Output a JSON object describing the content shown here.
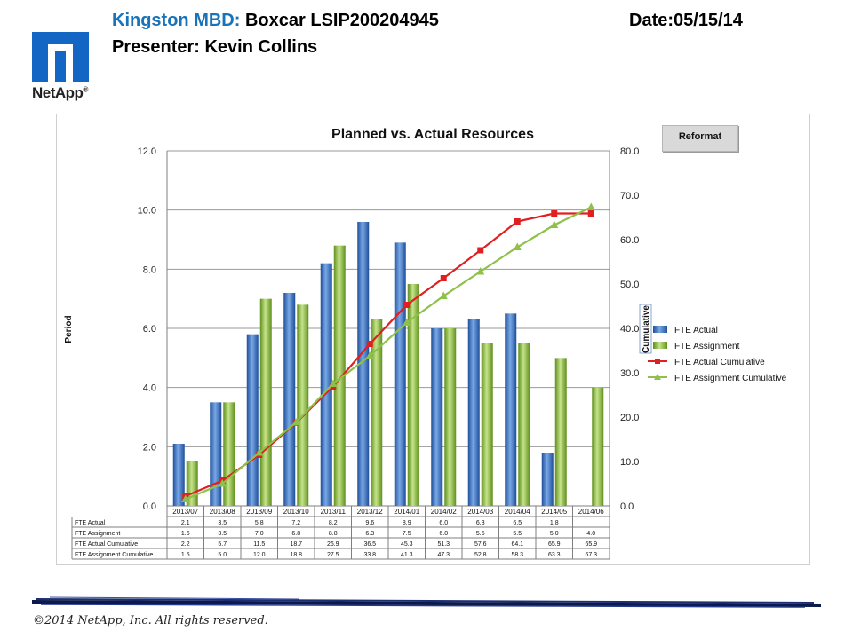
{
  "header": {
    "brand": "Kingston MBD:",
    "project": "Boxcar LSIP200204945",
    "date": "Date:05/15/14",
    "presenter": "Presenter: Kevin Collins"
  },
  "logo": {
    "text": "NetApp",
    "registered": "®",
    "color": "#1466c4"
  },
  "reformat_button": {
    "label": "Reformat"
  },
  "footer": {
    "copyright": "©2014 NetApp, Inc. All rights reserved."
  },
  "chart_data": {
    "type": "bar",
    "title": "Planned vs. Actual Resources",
    "ylabel": "Period",
    "y2label": "Cumulative",
    "ylim": [
      0,
      12
    ],
    "y2lim": [
      0,
      80
    ],
    "yticks": [
      "0.0",
      "2.0",
      "4.0",
      "6.0",
      "8.0",
      "10.0",
      "12.0"
    ],
    "y2ticks": [
      "0.0",
      "10.0",
      "20.0",
      "30.0",
      "40.0",
      "50.0",
      "60.0",
      "70.0",
      "80.0"
    ],
    "categories": [
      "2013/07",
      "2013/08",
      "2013/09",
      "2013/10",
      "2013/11",
      "2013/12",
      "2014/01",
      "2014/02",
      "2014/03",
      "2014/04",
      "2014/05",
      "2014/06"
    ],
    "grid": true,
    "legend_position": "right",
    "series": [
      {
        "name": "FTE Actual",
        "kind": "bar",
        "axis": "left",
        "color": "#3a74c7",
        "values": [
          2.1,
          3.5,
          5.8,
          7.2,
          8.2,
          9.6,
          8.9,
          6.0,
          6.3,
          6.5,
          1.8,
          null
        ],
        "labels": [
          "2.1",
          "3.5",
          "5.8",
          "7.2",
          "8.2",
          "9.6",
          "8.9",
          "6.0",
          "6.3",
          "6.5",
          "1.8",
          ""
        ]
      },
      {
        "name": "FTE Assignment",
        "kind": "bar",
        "axis": "left",
        "color": "#8fc43c",
        "values": [
          1.5,
          3.5,
          7.0,
          6.8,
          8.8,
          6.3,
          7.5,
          6.0,
          5.5,
          5.5,
          5.0,
          4.0
        ],
        "labels": [
          "1.5",
          "3.5",
          "7.0",
          "6.8",
          "8.8",
          "6.3",
          "7.5",
          "6.0",
          "5.5",
          "5.5",
          "5.0",
          "4.0"
        ]
      },
      {
        "name": "FTE Actual Cumulative",
        "kind": "line",
        "axis": "right",
        "color": "#e02020",
        "values": [
          2.2,
          5.7,
          11.5,
          18.7,
          26.9,
          36.5,
          45.3,
          51.3,
          57.6,
          64.1,
          65.9,
          65.9
        ],
        "labels": [
          "2.2",
          "5.7",
          "11.5",
          "18.7",
          "26.9",
          "36.5",
          "45.3",
          "51.3",
          "57.6",
          "64.1",
          "65.9",
          "65.9"
        ]
      },
      {
        "name": "FTE Assignment Cumulative",
        "kind": "line",
        "axis": "right",
        "color": "#8dc14a",
        "values": [
          1.5,
          5.0,
          12.0,
          18.8,
          27.5,
          33.8,
          41.3,
          47.3,
          52.8,
          58.3,
          63.3,
          67.3
        ],
        "labels": [
          "1.5",
          "5.0",
          "12.0",
          "18.8",
          "27.5",
          "33.8",
          "41.3",
          "47.3",
          "52.8",
          "58.3",
          "63.3",
          "67.3"
        ]
      }
    ]
  }
}
